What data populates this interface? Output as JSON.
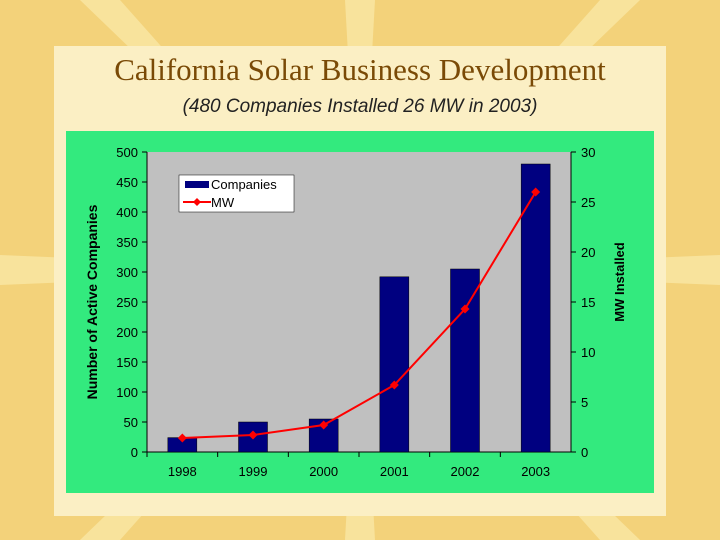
{
  "slide": {
    "title": "California Solar Business Development",
    "subtitle": "(480 Companies Installed 26 MW in 2003)"
  },
  "colors": {
    "background": "#f3d27a",
    "panel": "#fbefc4",
    "chart_area": "#33ea7e",
    "plot_area": "#c0c0c0",
    "bars": "#000080",
    "line": "#ff0000",
    "title": "#7a4a06"
  },
  "chart_data": {
    "type": "bar",
    "categories": [
      "1998",
      "1999",
      "2000",
      "2001",
      "2002",
      "2003"
    ],
    "series": [
      {
        "name": "Companies",
        "type": "bar",
        "axis": "left",
        "values": [
          24,
          50,
          55,
          292,
          305,
          480
        ]
      },
      {
        "name": "MW",
        "type": "line",
        "axis": "right",
        "values": [
          1.4,
          1.7,
          2.7,
          6.7,
          14.3,
          26
        ]
      }
    ],
    "ylabel": "Number of Active Companies",
    "y2label": "MW Installed",
    "xlabel": "",
    "ylim": [
      0,
      500
    ],
    "y2lim": [
      0,
      30
    ],
    "yticks": [
      "0",
      "50",
      "100",
      "150",
      "200",
      "250",
      "300",
      "350",
      "400",
      "450",
      "500"
    ],
    "y2ticks": [
      "0",
      "5",
      "10",
      "15",
      "20",
      "25",
      "30"
    ],
    "legend": {
      "position": "top-left",
      "entries": [
        "Companies",
        "MW"
      ]
    }
  }
}
